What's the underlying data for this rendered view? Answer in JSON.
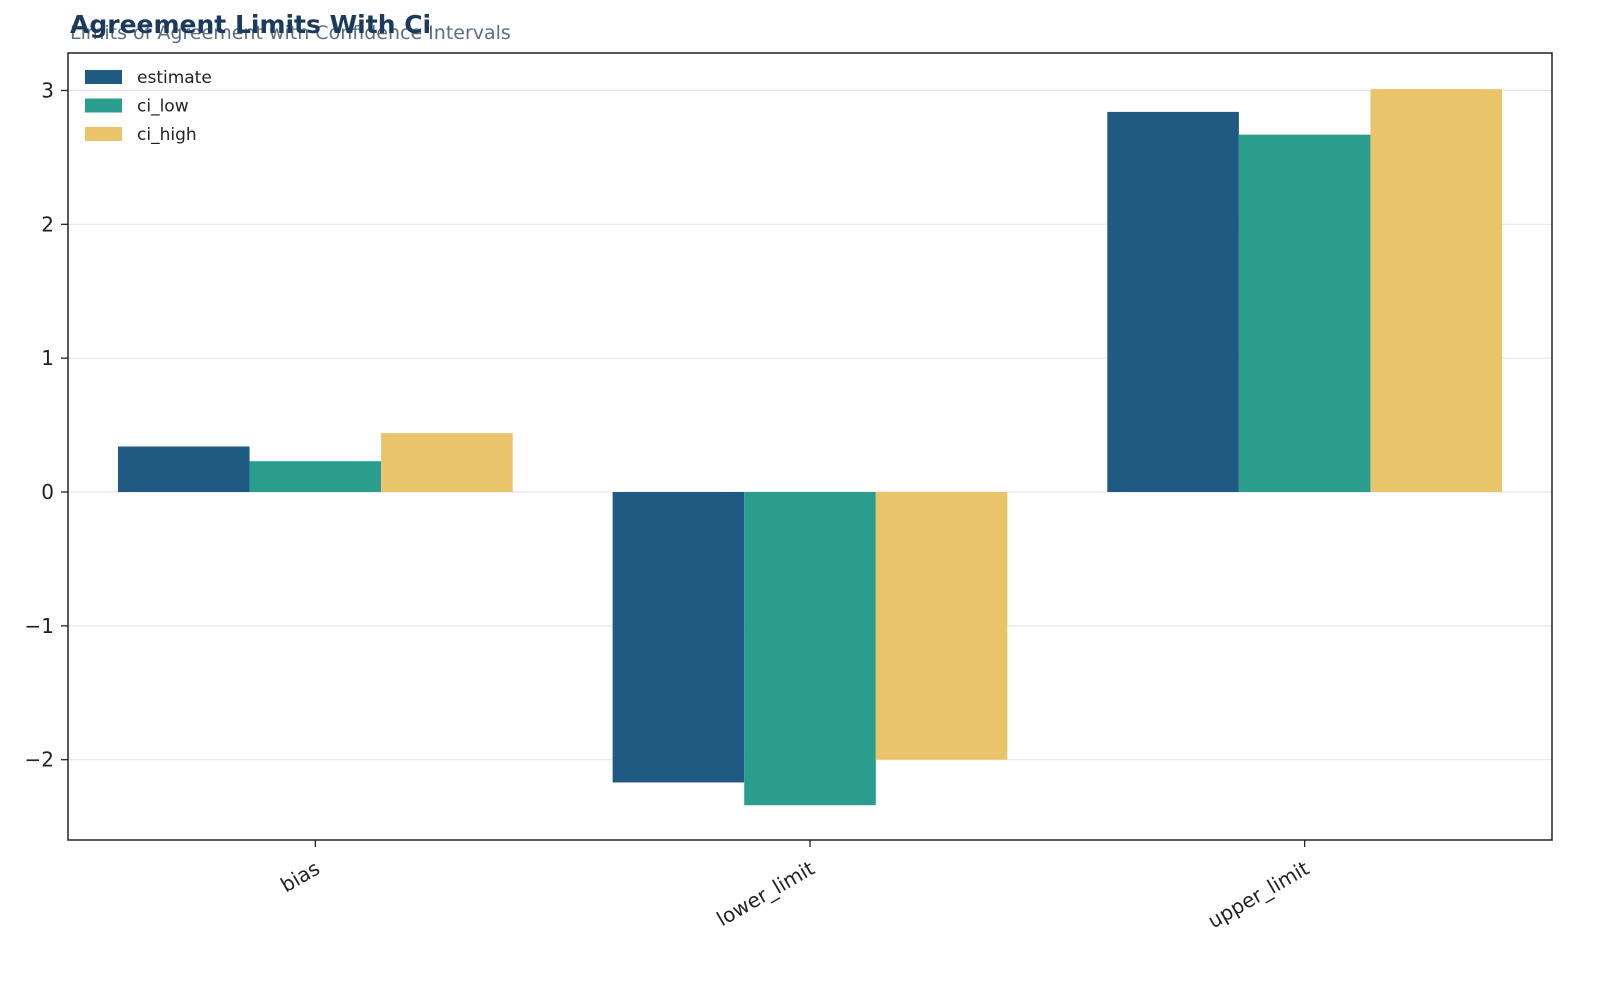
{
  "chart_data": {
    "type": "bar",
    "title": "Agreement Limits With Ci",
    "subtitle": "Limits of Agreement with Confidence Intervals",
    "xlabel": "",
    "ylabel": "",
    "categories": [
      "bias",
      "lower_limit",
      "upper_limit"
    ],
    "series": [
      {
        "name": "estimate",
        "color": "#1f5a82",
        "values": [
          0.34,
          -2.17,
          2.84
        ]
      },
      {
        "name": "ci_low",
        "color": "#2a9d8f",
        "values": [
          0.23,
          -2.34,
          2.67
        ]
      },
      {
        "name": "ci_high",
        "color": "#e9c46a",
        "values": [
          0.44,
          -2.0,
          3.01
        ]
      }
    ],
    "ylim": [
      -2.6,
      3.28
    ],
    "yticks": [
      -2,
      -1,
      0,
      1,
      2,
      3
    ],
    "ytick_labels": [
      "−2",
      "−1",
      "0",
      "1",
      "2",
      "3"
    ],
    "grid": "horizontal",
    "legend_position": "top-left"
  }
}
